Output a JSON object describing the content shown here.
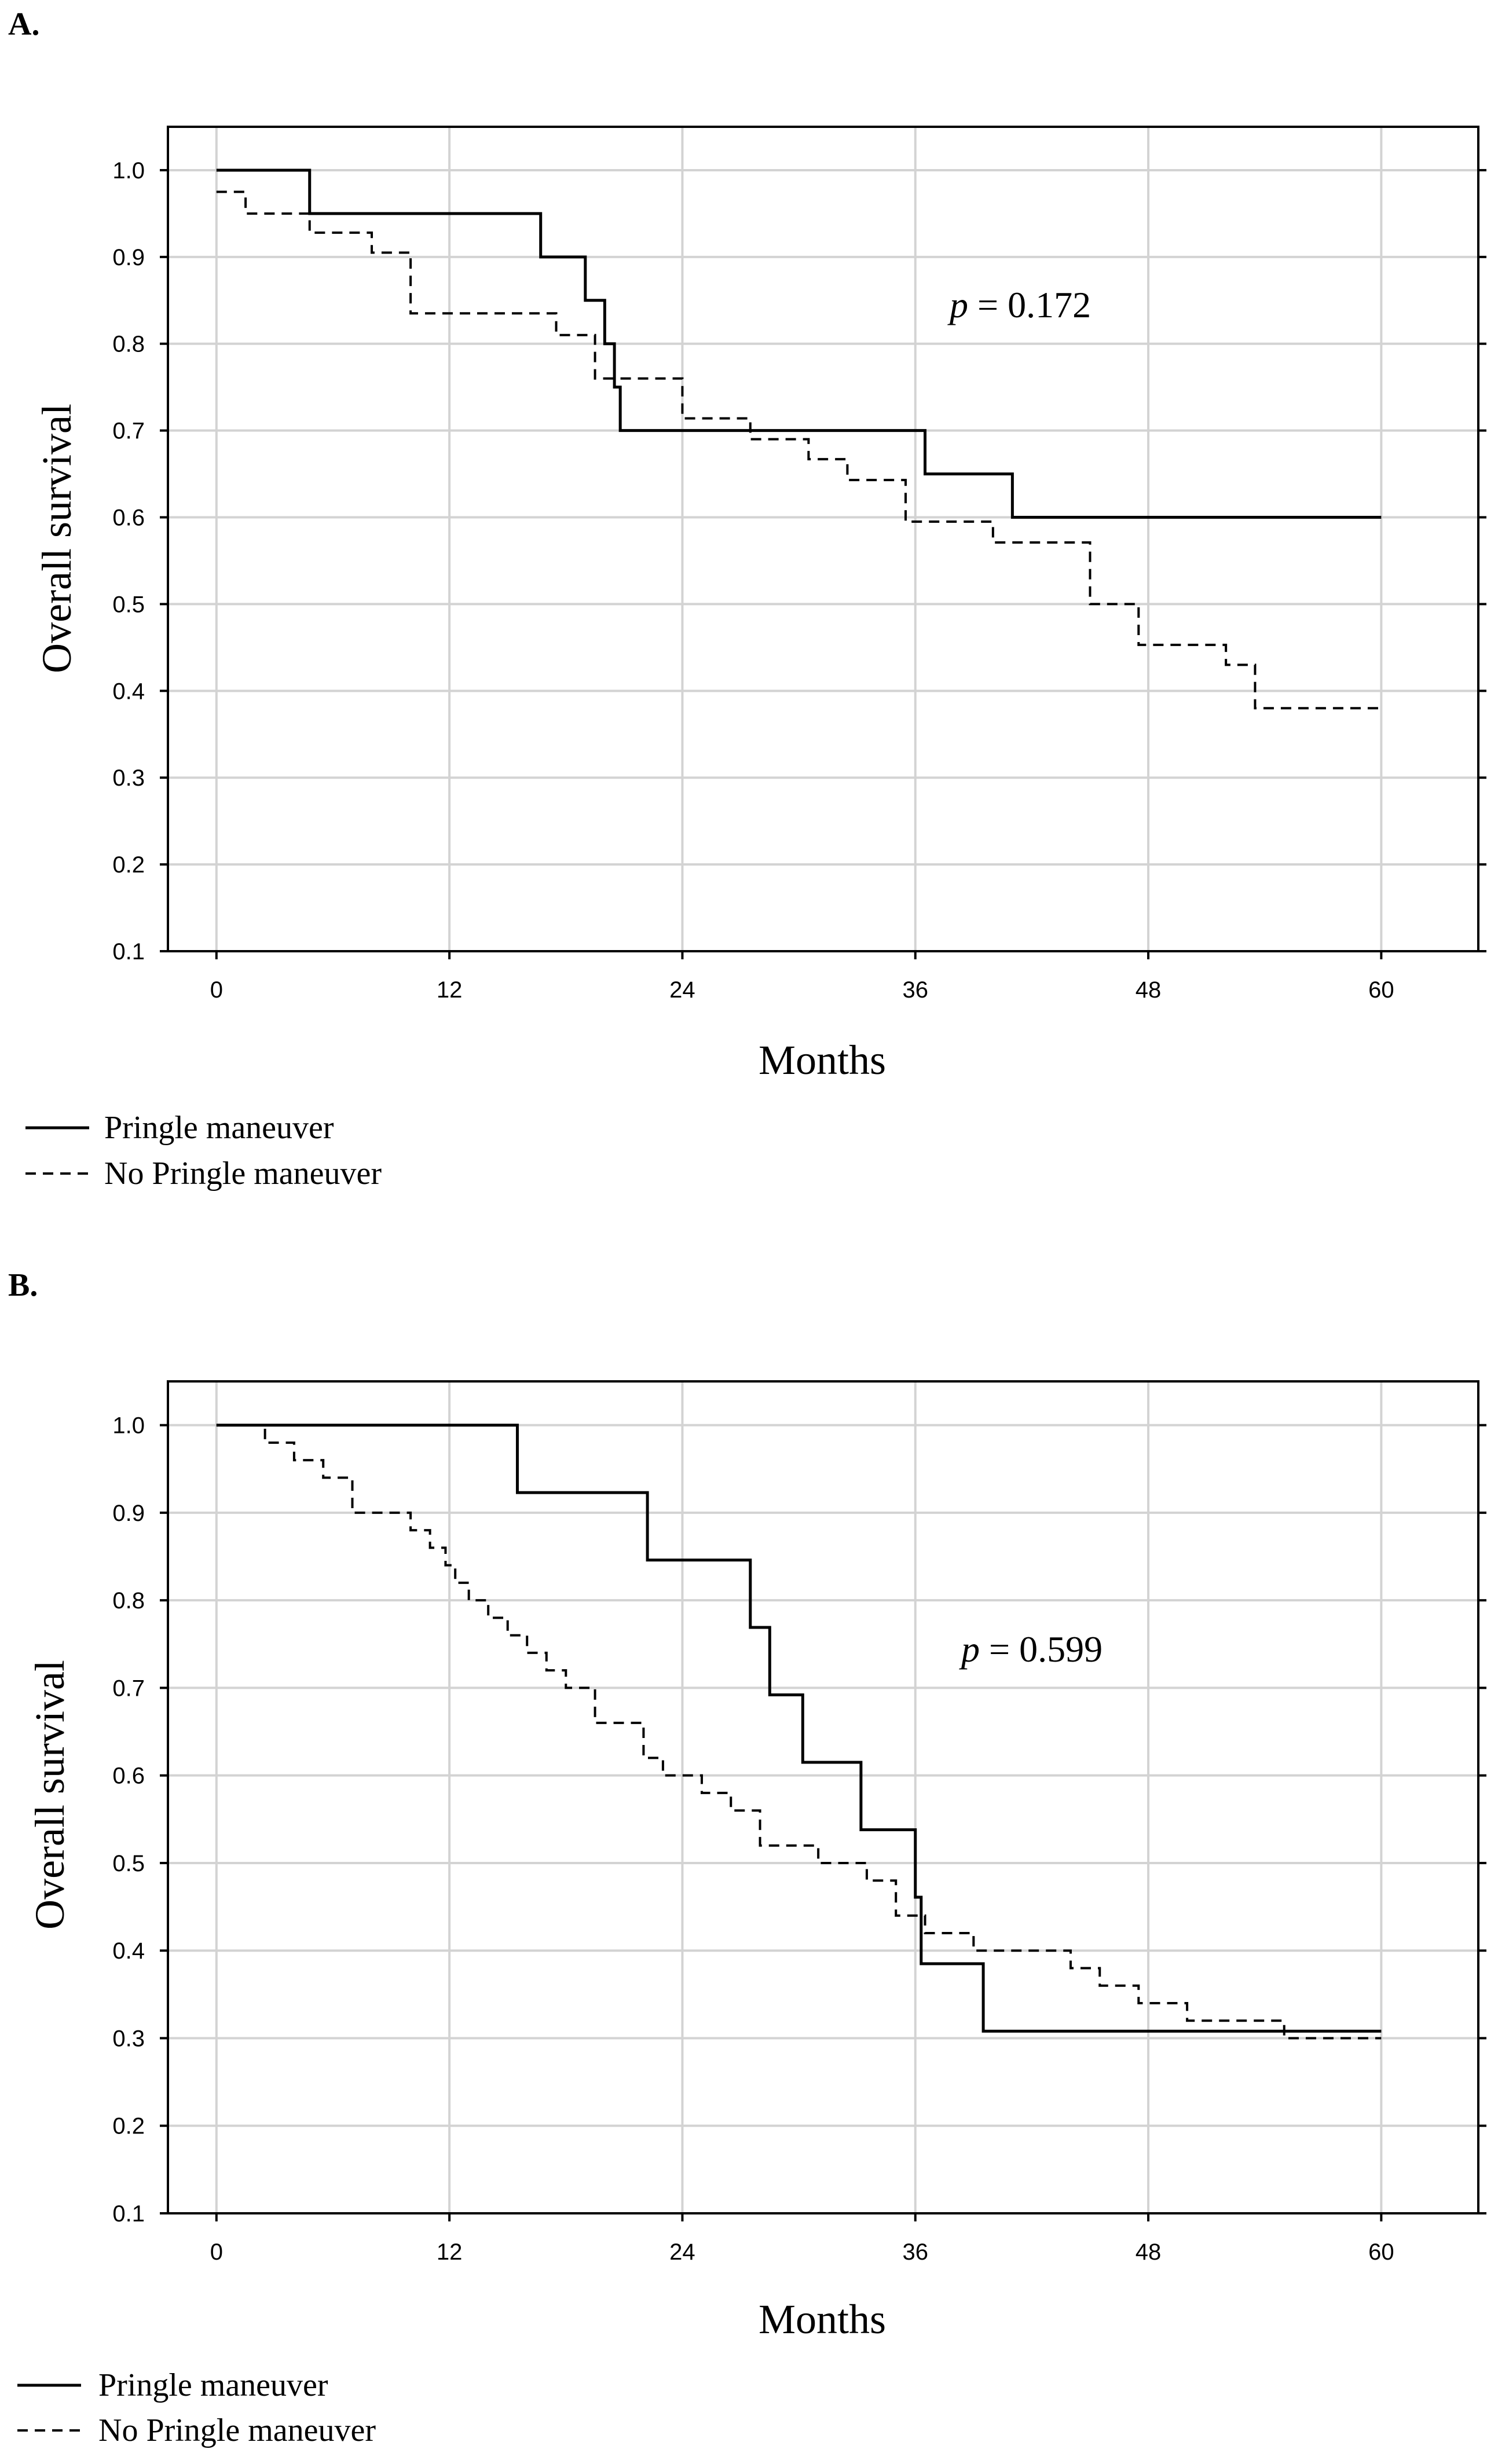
{
  "chart_data": [
    {
      "type": "line",
      "step": true,
      "panel_label": "A.",
      "title": "",
      "xlabel": "Months",
      "ylabel": "Overall survival",
      "xlim": [
        -2.5,
        65
      ],
      "ylim": [
        0.1,
        1.05
      ],
      "xticks": [
        0,
        12,
        24,
        36,
        48,
        60
      ],
      "yticks": [
        0.1,
        0.2,
        0.3,
        0.4,
        0.5,
        0.6,
        0.7,
        0.8,
        0.9,
        1.0
      ],
      "ytick_labels": [
        "0.1",
        "0.2",
        "0.3",
        "0.4",
        "0.5",
        "0.6",
        "0.7",
        "0.8",
        "0.9",
        "1.0"
      ],
      "grid": true,
      "annotation": {
        "italic": "p",
        "text": " = 0.172",
        "x": 35.5,
        "y": 0.835
      },
      "series": [
        {
          "name": "Pringle maneuver",
          "style": "solid",
          "x": [
            0,
            4.8,
            16.7,
            19,
            20,
            20.5,
            20.8,
            36.5,
            41,
            60
          ],
          "y": [
            1.0,
            0.95,
            0.9,
            0.85,
            0.8,
            0.75,
            0.7,
            0.65,
            0.6,
            0.6
          ]
        },
        {
          "name": "No Pringle maneuver",
          "style": "dashed",
          "x": [
            0,
            1.5,
            4.8,
            8,
            10,
            17.5,
            19.5,
            24,
            25.5,
            27.5,
            30.5,
            32.5,
            35.5,
            40,
            45,
            47.5,
            52,
            53.5,
            60
          ],
          "y": [
            0.975,
            0.95,
            0.928,
            0.905,
            0.835,
            0.81,
            0.76,
            0.714,
            0.714,
            0.69,
            0.667,
            0.643,
            0.595,
            0.571,
            0.5,
            0.453,
            0.43,
            0.38,
            0.38
          ]
        }
      ],
      "legend": [
        {
          "label": "Pringle maneuver",
          "style": "solid"
        },
        {
          "label": "No Pringle maneuver",
          "style": "dashed"
        }
      ]
    },
    {
      "type": "line",
      "step": true,
      "panel_label": "B.",
      "title": "",
      "xlabel": "Months",
      "ylabel": "Overall survival",
      "xlim": [
        -2.5,
        65
      ],
      "ylim": [
        0.1,
        1.05
      ],
      "xticks": [
        0,
        12,
        24,
        36,
        48,
        60
      ],
      "yticks": [
        0.1,
        0.2,
        0.3,
        0.4,
        0.5,
        0.6,
        0.7,
        0.8,
        0.9,
        1.0
      ],
      "ytick_labels": [
        "0.1",
        "0.2",
        "0.3",
        "0.4",
        "0.5",
        "0.6",
        "0.7",
        "0.8",
        "0.9",
        "1.0"
      ],
      "grid": true,
      "annotation": {
        "italic": "p",
        "text": " = 0.599",
        "x": 38.5,
        "y": 0.72
      },
      "series": [
        {
          "name": "Pringle maneuver",
          "style": "solid",
          "x": [
            0,
            15.5,
            22.2,
            27.5,
            28.5,
            30.2,
            33.2,
            36,
            36.3,
            39.5,
            60
          ],
          "y": [
            1.0,
            0.923,
            0.846,
            0.769,
            0.692,
            0.615,
            0.538,
            0.461,
            0.385,
            0.308,
            0.308
          ]
        },
        {
          "name": "No Pringle maneuver",
          "style": "dashed",
          "x": [
            0,
            2.5,
            4,
            5.5,
            7,
            10,
            11,
            11.8,
            12.3,
            13,
            14,
            15,
            16,
            17,
            18,
            19.5,
            22,
            23,
            25,
            26.5,
            28,
            31,
            33.5,
            35,
            36.5,
            39,
            44,
            45.5,
            47.5,
            50,
            55,
            60
          ],
          "y": [
            1.0,
            0.98,
            0.96,
            0.94,
            0.9,
            0.88,
            0.86,
            0.84,
            0.82,
            0.8,
            0.78,
            0.76,
            0.74,
            0.72,
            0.7,
            0.66,
            0.62,
            0.6,
            0.58,
            0.56,
            0.52,
            0.5,
            0.48,
            0.44,
            0.42,
            0.4,
            0.38,
            0.36,
            0.34,
            0.32,
            0.3,
            0.3
          ]
        }
      ],
      "legend": [
        {
          "label": "Pringle maneuver",
          "style": "solid"
        },
        {
          "label": "No Pringle maneuver",
          "style": "dashed"
        }
      ]
    }
  ]
}
